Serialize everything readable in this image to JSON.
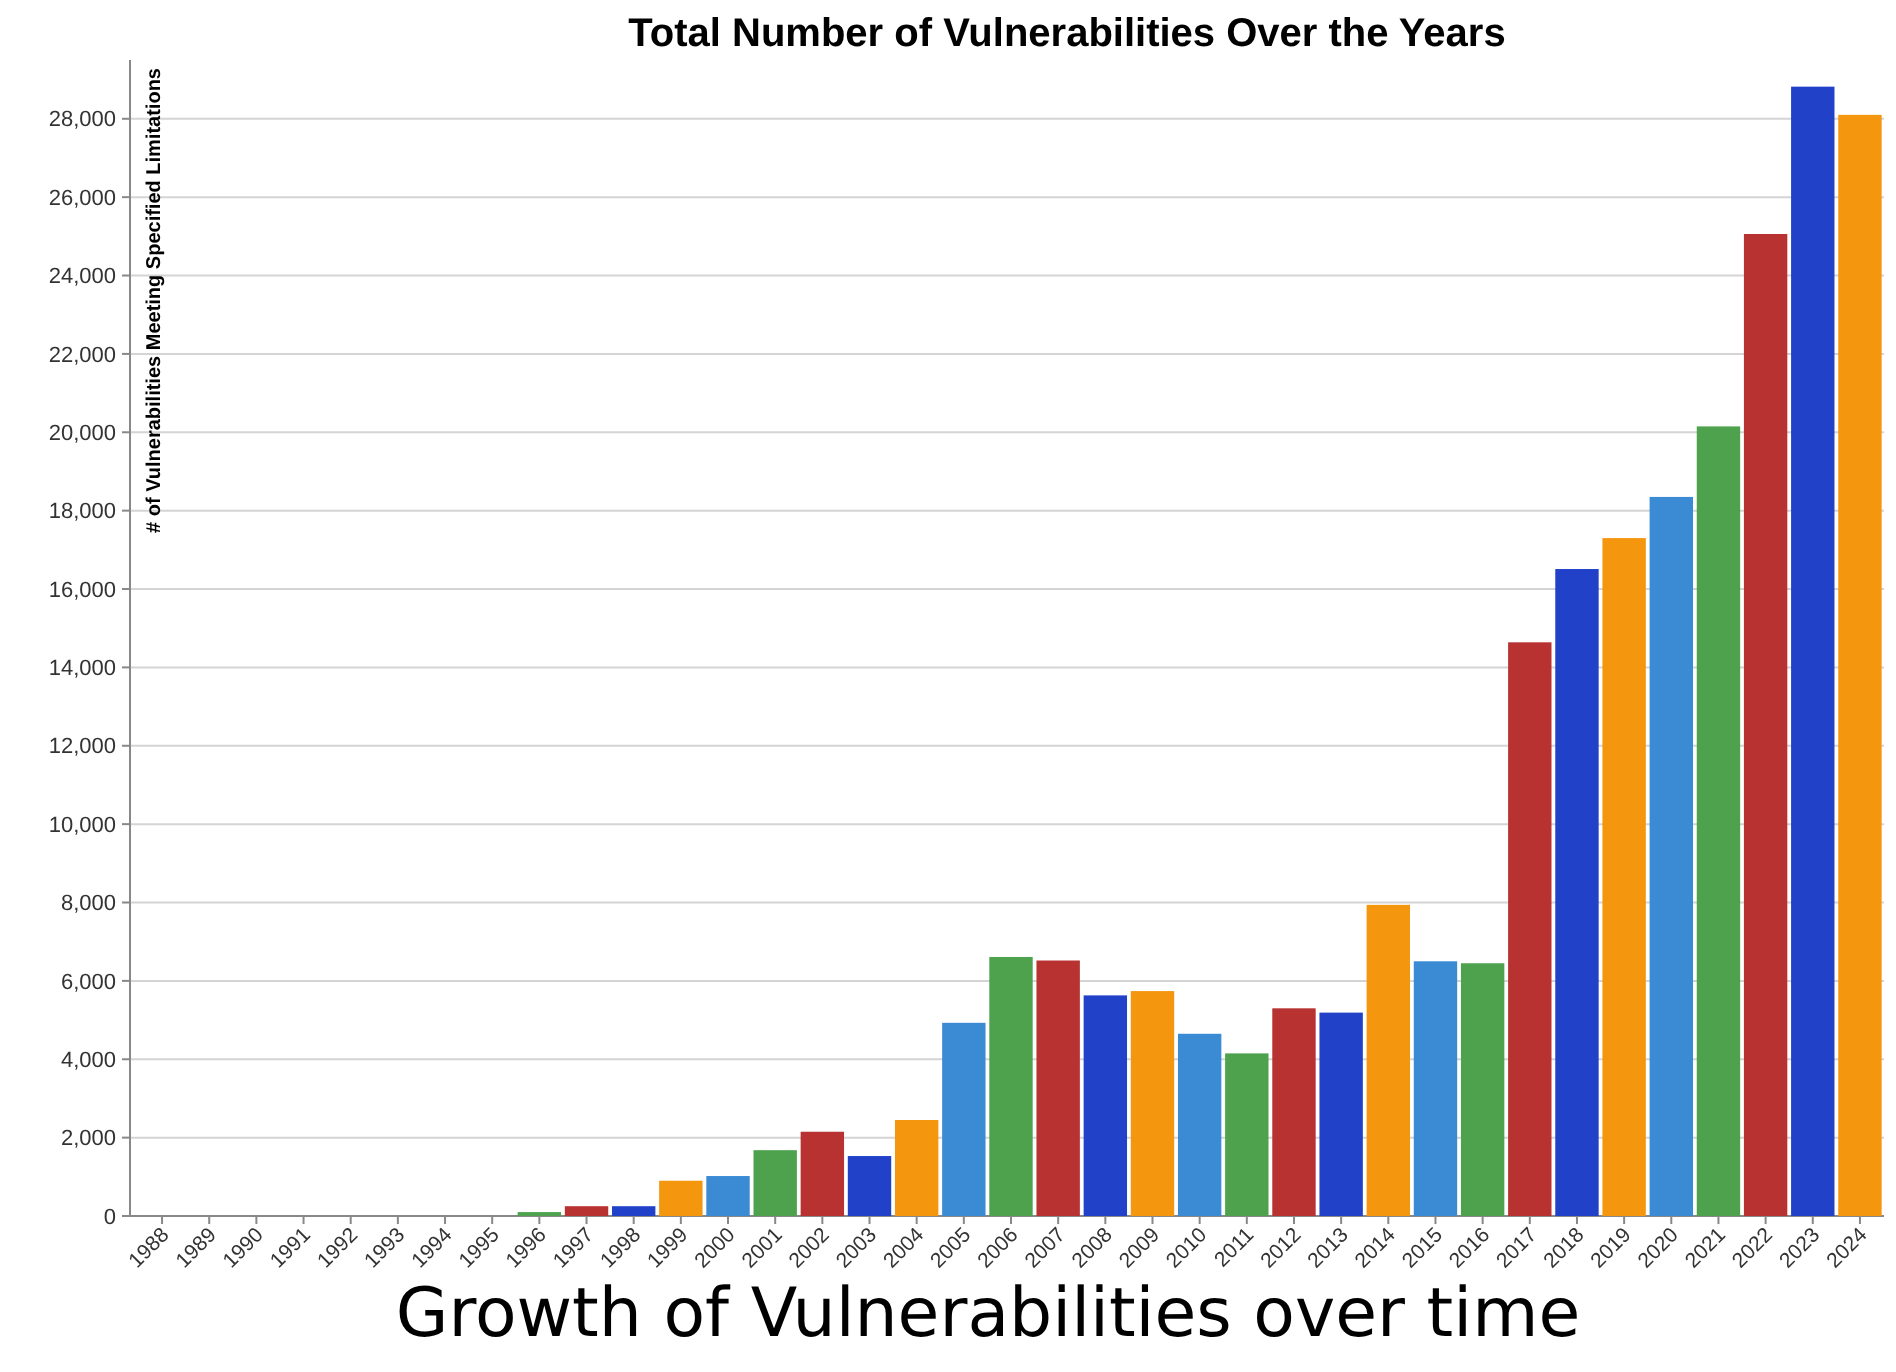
{
  "chart_data": {
    "type": "bar",
    "title": "Total Number of Vulnerabilities Over the Years",
    "ylabel": "# of Vulnerabilities Meeting Specified Limitations",
    "categories": [
      "1988",
      "1989",
      "1990",
      "1991",
      "1992",
      "1993",
      "1994",
      "1995",
      "1996",
      "1997",
      "1998",
      "1999",
      "2000",
      "2001",
      "2002",
      "2003",
      "2004",
      "2005",
      "2006",
      "2007",
      "2008",
      "2009",
      "2010",
      "2011",
      "2012",
      "2013",
      "2014",
      "2015",
      "2016",
      "2017",
      "2018",
      "2019",
      "2020",
      "2021",
      "2022",
      "2023",
      "2024"
    ],
    "values": [
      0,
      0,
      0,
      0,
      0,
      0,
      0,
      0,
      100,
      250,
      250,
      900,
      1020,
      1680,
      2150,
      1530,
      2450,
      4930,
      6610,
      6520,
      5630,
      5740,
      4650,
      4150,
      5300,
      5190,
      7940,
      6500,
      6450,
      14640,
      16510,
      17300,
      18350,
      20150,
      25060,
      28820,
      28100
    ],
    "colors": [
      "#2141c8",
      "#f5960f",
      "#3a8ad4",
      "#4ea24e",
      "#b83232",
      "#2141c8",
      "#f5960f",
      "#3a8ad4",
      "#4ea24e",
      "#b83232",
      "#2141c8",
      "#f5960f",
      "#3a8ad4",
      "#4ea24e",
      "#b83232",
      "#2141c8",
      "#f5960f",
      "#3a8ad4",
      "#4ea24e",
      "#b83232",
      "#2141c8",
      "#f5960f",
      "#3a8ad4",
      "#4ea24e",
      "#b83232",
      "#2141c8",
      "#f5960f",
      "#3a8ad4",
      "#4ea24e",
      "#b83232",
      "#2141c8",
      "#f5960f",
      "#3a8ad4",
      "#4ea24e",
      "#b83232",
      "#2141c8",
      "#f5960f"
    ],
    "ylim": [
      0,
      29500
    ],
    "yticks": [
      0,
      {
        "value": 2000,
        "label": "2,000"
      },
      {
        "value": 4000,
        "label": "4,000"
      },
      {
        "value": 6000,
        "label": "6,000"
      },
      {
        "value": 8000,
        "label": "8,000"
      },
      {
        "value": 10000,
        "label": "10,000"
      },
      {
        "value": 12000,
        "label": "12,000"
      },
      {
        "value": 14000,
        "label": "14,000"
      },
      {
        "value": 16000,
        "label": "16,000"
      },
      {
        "value": 18000,
        "label": "18,000"
      },
      {
        "value": 20000,
        "label": "20,000"
      },
      {
        "value": 22000,
        "label": "22,000"
      },
      {
        "value": 24000,
        "label": "24,000"
      },
      {
        "value": 26000,
        "label": "26,000"
      },
      {
        "value": 28000,
        "label": "28,000"
      }
    ],
    "grid": "y",
    "annotations": [
      "Growth of Vulnerabilities over time"
    ]
  }
}
